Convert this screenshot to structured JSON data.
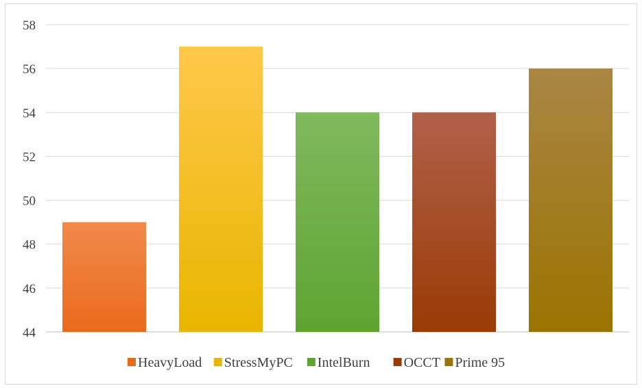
{
  "chart_data": {
    "type": "bar",
    "title": "",
    "xlabel": "",
    "ylabel": "",
    "categories": [
      "HeavyLoad",
      "StressMyPC",
      "IntelBurn",
      "OCCT",
      "Prime 95"
    ],
    "values": [
      49,
      57,
      54,
      54,
      56
    ],
    "ylim": [
      44,
      58
    ],
    "yticks": [
      "44",
      "46",
      "48",
      "50",
      "52",
      "54",
      "56",
      "58"
    ],
    "grid": true,
    "legend_position": "bottom",
    "colors": [
      {
        "top": "#f08a4b",
        "bottom": "#ea6a1c"
      },
      {
        "top": "#ffc84a",
        "bottom": "#e8b600"
      },
      {
        "top": "#80b95e",
        "bottom": "#5ea431"
      },
      {
        "top": "#b0614a",
        "bottom": "#9a3b05"
      },
      {
        "top": "#a98644",
        "bottom": "#9a7400"
      }
    ]
  }
}
